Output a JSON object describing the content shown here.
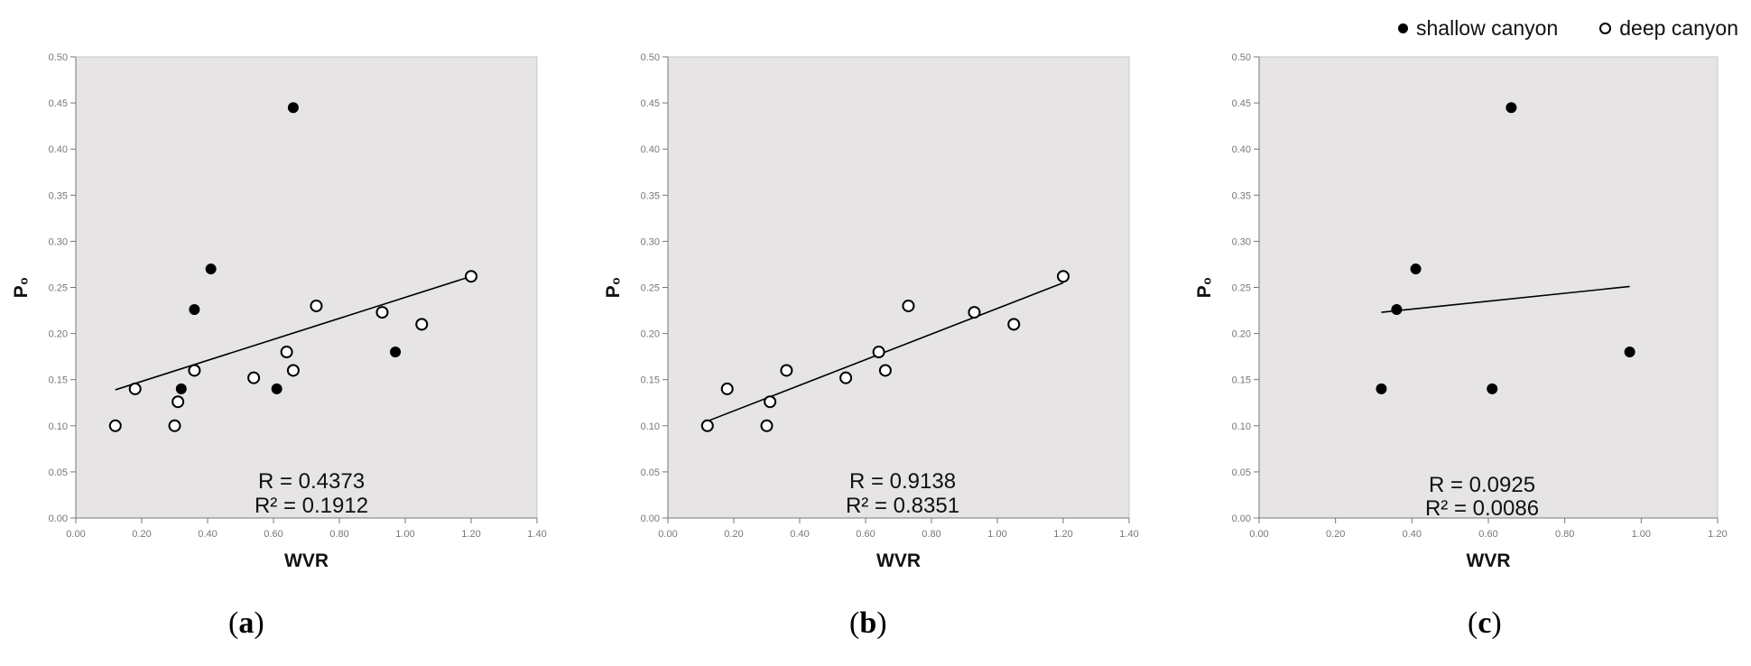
{
  "legend": {
    "filled_label": "shallow canyon",
    "open_label": "deep canyon"
  },
  "colors": {
    "plot_bg": "#e6e4e5",
    "marker": "#000000",
    "tick_text": "#777777"
  },
  "chart_data": [
    {
      "type": "scatter",
      "panel": "(a)",
      "xlabel": "WVR",
      "ylabel": "P₀",
      "xlim": [
        0,
        1.4
      ],
      "ylim": [
        0,
        0.5
      ],
      "xticks": [
        "0.00",
        "0.20",
        "0.40",
        "0.60",
        "0.80",
        "1.00",
        "1.20",
        "1.40"
      ],
      "yticks": [
        "0.00",
        "0.05",
        "0.10",
        "0.15",
        "0.20",
        "0.25",
        "0.30",
        "0.35",
        "0.40",
        "0.45",
        "0.50"
      ],
      "series": [
        {
          "name": "shallow canyon",
          "marker": "filled",
          "points": [
            [
              0.32,
              0.14
            ],
            [
              0.36,
              0.226
            ],
            [
              0.41,
              0.27
            ],
            [
              0.61,
              0.14
            ],
            [
              0.66,
              0.445
            ],
            [
              0.97,
              0.18
            ]
          ]
        },
        {
          "name": "deep canyon",
          "marker": "open",
          "points": [
            [
              0.12,
              0.1
            ],
            [
              0.18,
              0.14
            ],
            [
              0.3,
              0.1
            ],
            [
              0.31,
              0.126
            ],
            [
              0.36,
              0.16
            ],
            [
              0.54,
              0.152
            ],
            [
              0.64,
              0.18
            ],
            [
              0.66,
              0.16
            ],
            [
              0.73,
              0.23
            ],
            [
              0.93,
              0.223
            ],
            [
              1.05,
              0.21
            ],
            [
              1.2,
              0.262
            ]
          ]
        }
      ],
      "fit_line": [
        [
          0.12,
          0.139
        ],
        [
          1.2,
          0.262
        ]
      ],
      "annotations": [
        "R = 0.4373",
        "R² = 0.1912"
      ]
    },
    {
      "type": "scatter",
      "panel": "(b)",
      "xlabel": "WVR",
      "ylabel": "P₀",
      "xlim": [
        0,
        1.4
      ],
      "ylim": [
        0,
        0.5
      ],
      "xticks": [
        "0.00",
        "0.20",
        "0.40",
        "0.60",
        "0.80",
        "1.00",
        "1.20",
        "1.40"
      ],
      "yticks": [
        "0.00",
        "0.05",
        "0.10",
        "0.15",
        "0.20",
        "0.25",
        "0.30",
        "0.35",
        "0.40",
        "0.45",
        "0.50"
      ],
      "series": [
        {
          "name": "deep canyon",
          "marker": "open",
          "points": [
            [
              0.12,
              0.1
            ],
            [
              0.18,
              0.14
            ],
            [
              0.3,
              0.1
            ],
            [
              0.31,
              0.126
            ],
            [
              0.36,
              0.16
            ],
            [
              0.54,
              0.152
            ],
            [
              0.64,
              0.18
            ],
            [
              0.66,
              0.16
            ],
            [
              0.73,
              0.23
            ],
            [
              0.93,
              0.223
            ],
            [
              1.05,
              0.21
            ],
            [
              1.2,
              0.262
            ]
          ]
        }
      ],
      "fit_line": [
        [
          0.12,
          0.105
        ],
        [
          1.2,
          0.255
        ]
      ],
      "annotations": [
        "R = 0.9138",
        "R² = 0.8351"
      ]
    },
    {
      "type": "scatter",
      "panel": "(c)",
      "xlabel": "WVR",
      "ylabel": "P₀",
      "xlim": [
        0,
        1.2
      ],
      "ylim": [
        0,
        0.5
      ],
      "xticks": [
        "0.00",
        "0.20",
        "0.40",
        "0.60",
        "0.80",
        "1.00",
        "1.20"
      ],
      "yticks": [
        "0.00",
        "0.05",
        "0.10",
        "0.15",
        "0.20",
        "0.25",
        "0.30",
        "0.35",
        "0.40",
        "0.45",
        "0.50"
      ],
      "series": [
        {
          "name": "shallow canyon",
          "marker": "filled",
          "points": [
            [
              0.32,
              0.14
            ],
            [
              0.36,
              0.226
            ],
            [
              0.41,
              0.27
            ],
            [
              0.61,
              0.14
            ],
            [
              0.66,
              0.445
            ],
            [
              0.97,
              0.18
            ]
          ]
        }
      ],
      "fit_line": [
        [
          0.32,
          0.223
        ],
        [
          0.97,
          0.251
        ]
      ],
      "annotations": [
        "R = 0.0925",
        "R² = 0.0086"
      ]
    }
  ],
  "captions": [
    "a",
    "b",
    "c"
  ]
}
